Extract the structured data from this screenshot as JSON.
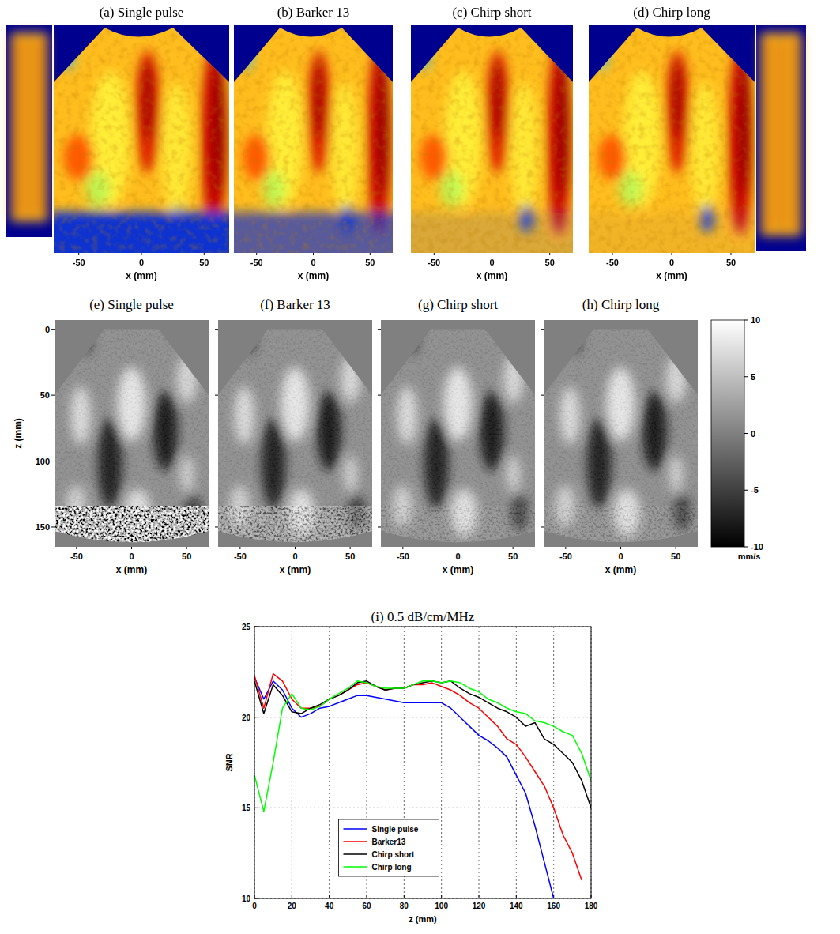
{
  "chart_data": [
    {
      "type": "image",
      "title": "(a) Single pulse",
      "xlabel": "x (mm)",
      "xlim": [
        -70,
        70
      ],
      "xticks": [
        -50,
        0,
        50
      ]
    },
    {
      "type": "image",
      "title": "(b) Barker 13",
      "xlabel": "x (mm)",
      "xlim": [
        -70,
        70
      ],
      "xticks": [
        -50,
        0,
        50
      ]
    },
    {
      "type": "image",
      "title": "(c) Chirp short",
      "xlabel": "x (mm)",
      "xlim": [
        -70,
        70
      ],
      "xticks": [
        -50,
        0,
        50
      ]
    },
    {
      "type": "image",
      "title": "(d) Chirp long",
      "xlabel": "x (mm)",
      "xlim": [
        -70,
        70
      ],
      "xticks": [
        -50,
        0,
        50
      ]
    },
    {
      "type": "heatmap",
      "title": "(e) Single pulse",
      "xlabel": "x (mm)",
      "ylabel": "z (mm)",
      "xlim": [
        -70,
        70
      ],
      "xticks": [
        -50,
        0,
        50
      ],
      "ylim": [
        -7,
        165
      ],
      "yticks": [
        0,
        50,
        100,
        150
      ]
    },
    {
      "type": "heatmap",
      "title": "(f) Barker 13",
      "xlabel": "x (mm)",
      "xlim": [
        -70,
        70
      ],
      "xticks": [
        -50,
        0,
        50
      ],
      "ylim": [
        -7,
        165
      ],
      "yticks": [
        0,
        50,
        100,
        150
      ],
      "tick_labels": "x"
    },
    {
      "type": "heatmap",
      "title": "(g) Chirp short",
      "xlabel": "x (mm)",
      "xlim": [
        -70,
        70
      ],
      "xticks": [
        -50,
        0,
        50
      ],
      "ylim": [
        -7,
        165
      ],
      "yticks": [
        0,
        50,
        100,
        150
      ],
      "tick_labels": "x"
    },
    {
      "type": "heatmap",
      "title": "(h) Chirp long",
      "xlabel": "x (mm)",
      "xlim": [
        -70,
        70
      ],
      "xticks": [
        -50,
        0,
        50
      ],
      "ylim": [
        -7,
        165
      ],
      "yticks": [
        0,
        50,
        100,
        150
      ],
      "tick_labels": "x",
      "colorbar": {
        "range": [
          -10,
          10
        ],
        "ticks": [
          10,
          5,
          0,
          -5,
          -10
        ],
        "label": "mm/s"
      }
    },
    {
      "type": "line",
      "title": "(i) 0.5 dB/cm/MHz",
      "xlabel": "z (mm)",
      "ylabel": "SNR",
      "x": [
        0,
        5,
        10,
        15,
        20,
        25,
        30,
        35,
        40,
        45,
        50,
        55,
        60,
        65,
        70,
        75,
        80,
        85,
        90,
        95,
        100,
        105,
        110,
        115,
        120,
        125,
        130,
        135,
        140,
        145,
        150,
        155,
        160,
        165,
        170,
        175,
        180
      ],
      "xlim": [
        0,
        180
      ],
      "xticks": [
        0,
        20,
        40,
        60,
        80,
        100,
        120,
        140,
        160,
        180
      ],
      "ylim": [
        10,
        25
      ],
      "yticks": [
        10,
        15,
        20,
        25
      ],
      "grid": true,
      "legend": "lower left",
      "series": [
        {
          "name": "Single pulse",
          "color": "#0000ff",
          "values": [
            22.2,
            21.0,
            22.0,
            21.5,
            20.5,
            20.0,
            20.2,
            20.5,
            20.6,
            20.8,
            21.0,
            21.2,
            21.2,
            21.1,
            21.0,
            20.9,
            20.8,
            20.8,
            20.8,
            20.8,
            20.8,
            20.5,
            20.0,
            19.5,
            19.0,
            18.7,
            18.3,
            17.8,
            16.8,
            15.8,
            14.0,
            12.0,
            10.0,
            null,
            null,
            null,
            null
          ]
        },
        {
          "name": "Barker13",
          "color": "#ff0000",
          "values": [
            22.3,
            20.5,
            22.4,
            22.0,
            21.0,
            20.5,
            20.5,
            20.6,
            21.0,
            21.2,
            21.5,
            21.8,
            21.9,
            21.7,
            21.5,
            21.6,
            21.6,
            21.8,
            21.8,
            21.9,
            21.7,
            21.5,
            21.2,
            20.8,
            20.5,
            20.0,
            19.5,
            18.8,
            18.5,
            17.8,
            17.0,
            16.2,
            15.0,
            13.5,
            12.5,
            11.0,
            null
          ]
        },
        {
          "name": "Chirp short",
          "color": "#000000",
          "values": [
            22.0,
            20.2,
            21.8,
            21.2,
            20.3,
            20.2,
            20.5,
            20.7,
            21.0,
            21.2,
            21.5,
            21.9,
            22.0,
            21.7,
            21.5,
            21.6,
            21.6,
            21.8,
            21.9,
            22.0,
            21.9,
            22.0,
            21.6,
            21.3,
            21.1,
            20.8,
            20.5,
            20.3,
            20.0,
            19.5,
            19.7,
            18.8,
            18.5,
            18.0,
            17.5,
            16.5,
            15.0
          ]
        },
        {
          "name": "Chirp long",
          "color": "#00ff00",
          "values": [
            16.8,
            14.8,
            17.5,
            20.5,
            21.3,
            20.5,
            20.4,
            20.6,
            21.0,
            21.3,
            21.6,
            22.0,
            21.9,
            21.7,
            21.6,
            21.6,
            21.6,
            21.8,
            22.0,
            22.0,
            21.9,
            22.0,
            21.9,
            21.6,
            21.4,
            21.0,
            20.8,
            20.5,
            20.3,
            20.2,
            19.8,
            19.7,
            19.5,
            19.2,
            19.0,
            18.0,
            16.5
          ]
        }
      ]
    }
  ]
}
